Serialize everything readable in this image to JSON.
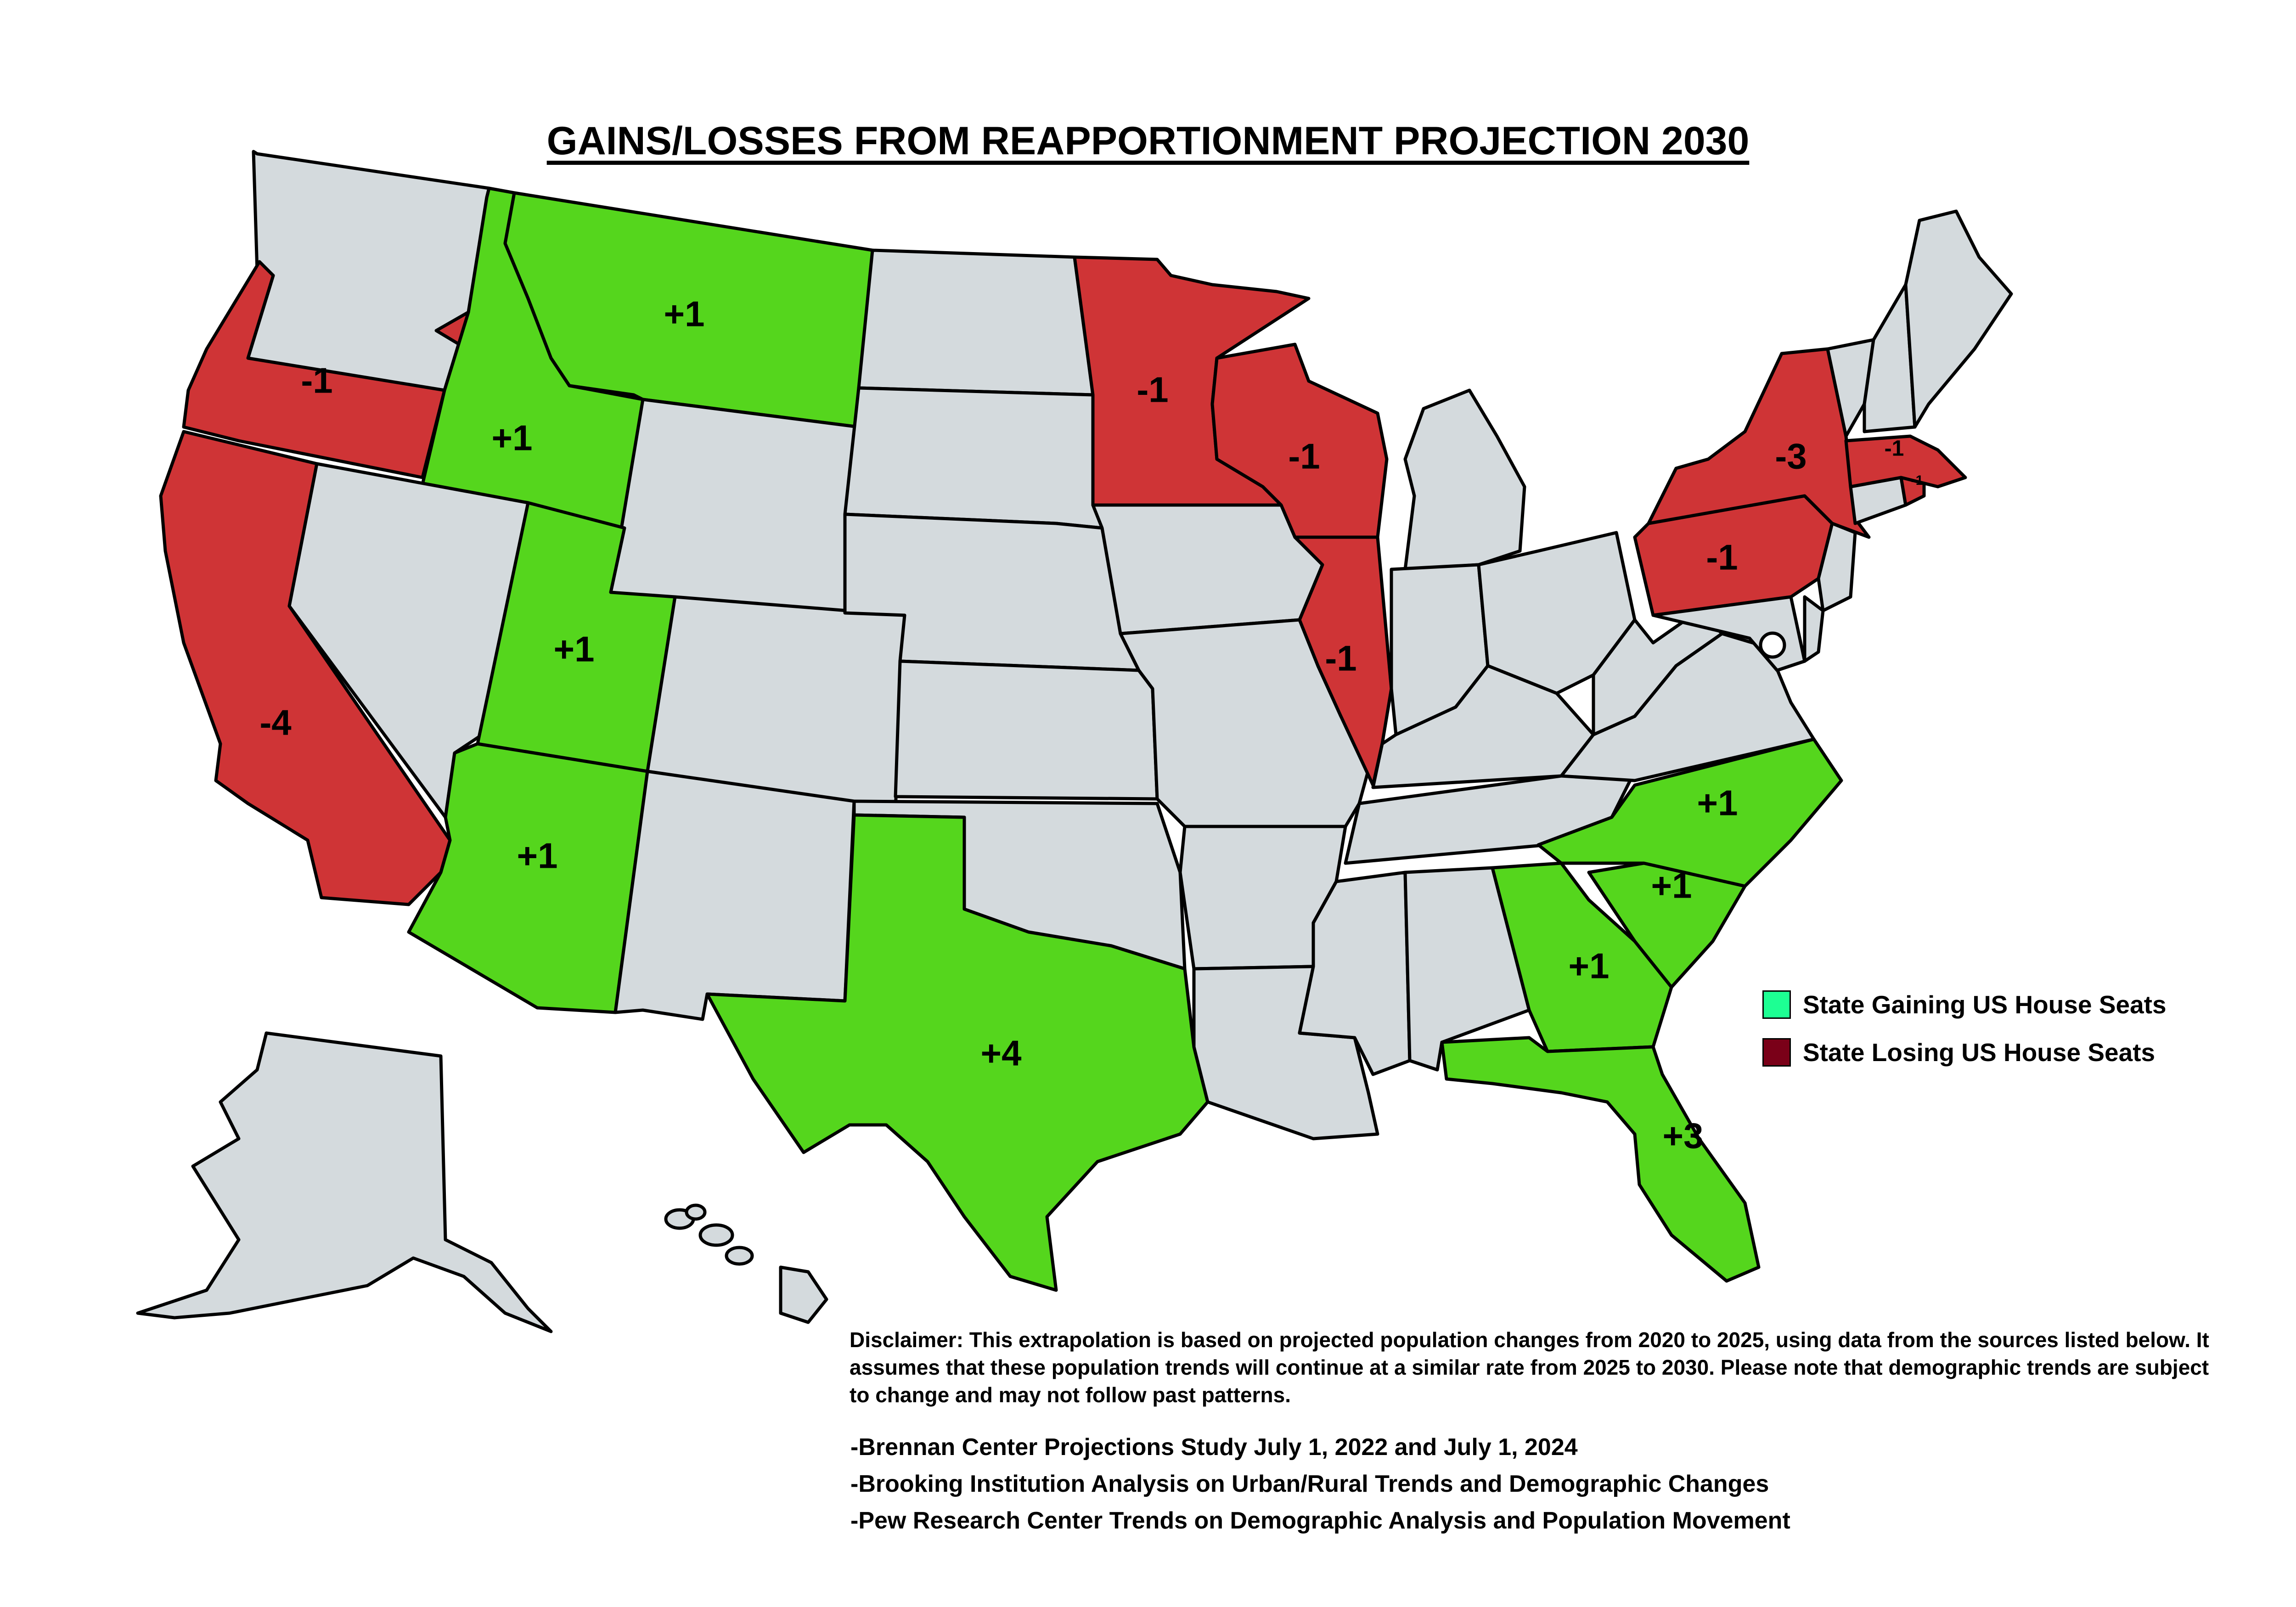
{
  "title": "GAINS/LOSSES FROM REAPPORTIONMENT PROJECTION 2030",
  "colors": {
    "gain_fill": "#55d61d",
    "loss_fill": "#cf3436",
    "neutral_fill": "#d4dadd",
    "legend_gain_swatch": "#1dff93",
    "legend_loss_swatch": "#7a0018",
    "border": "#000000"
  },
  "legend": {
    "gain_label": "State Gaining US House Seats",
    "loss_label": "State Losing US House Seats"
  },
  "state_changes": [
    {
      "state": "Oregon",
      "change": "-1",
      "status": "loss"
    },
    {
      "state": "California",
      "change": "-4",
      "status": "loss"
    },
    {
      "state": "Idaho",
      "change": "+1",
      "status": "gain"
    },
    {
      "state": "Montana",
      "change": "+1",
      "status": "gain"
    },
    {
      "state": "Utah",
      "change": "+1",
      "status": "gain"
    },
    {
      "state": "Arizona",
      "change": "+1",
      "status": "gain"
    },
    {
      "state": "Texas",
      "change": "+4",
      "status": "gain"
    },
    {
      "state": "Minnesota",
      "change": "-1",
      "status": "loss"
    },
    {
      "state": "Wisconsin",
      "change": "-1",
      "status": "loss"
    },
    {
      "state": "Illinois",
      "change": "-1",
      "status": "loss"
    },
    {
      "state": "New York",
      "change": "-3",
      "status": "loss"
    },
    {
      "state": "Pennsylvania",
      "change": "-1",
      "status": "loss"
    },
    {
      "state": "Massachusetts",
      "change": "-1",
      "status": "loss"
    },
    {
      "state": "Rhode Island",
      "change": "-1",
      "status": "loss"
    },
    {
      "state": "North Carolina",
      "change": "+1",
      "status": "gain"
    },
    {
      "state": "South Carolina",
      "change": "+1",
      "status": "gain"
    },
    {
      "state": "Georgia",
      "change": "+1",
      "status": "gain"
    },
    {
      "state": "Florida",
      "change": "+3",
      "status": "gain"
    }
  ],
  "disclaimer": "Disclaimer: This extrapolation is based on projected population changes from 2020 to 2025, using data from the sources listed below. It assumes that these population trends will continue at a similar rate from 2025 to 2030. Please note that demographic trends are subject to change and may not follow past patterns.",
  "sources": [
    "-Brennan Center Projections Study July 1, 2022 and July 1, 2024",
    "-Brooking Institution Analysis on Urban/Rural Trends and Demographic Changes",
    "-Pew Research Center Trends on Demographic Analysis and Population Movement"
  ]
}
